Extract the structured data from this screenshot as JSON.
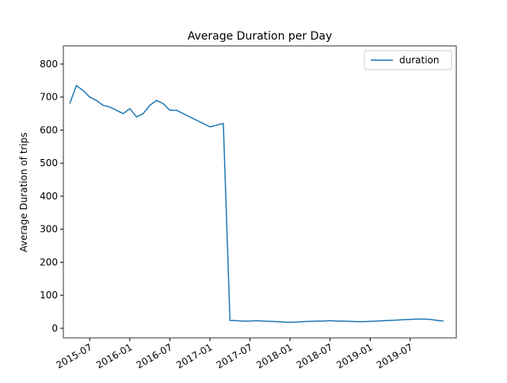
{
  "chart_data": {
    "type": "line",
    "title": "Average Duration per Day",
    "y_label": "Average Duration of trips",
    "x": [
      "2015-04",
      "2015-05",
      "2015-06",
      "2015-07",
      "2015-08",
      "2015-09",
      "2015-10",
      "2015-11",
      "2015-12",
      "2016-01",
      "2016-02",
      "2016-03",
      "2016-04",
      "2016-05",
      "2016-06",
      "2016-07",
      "2016-08",
      "2016-09",
      "2016-10",
      "2016-11",
      "2016-12",
      "2017-01",
      "2017-02",
      "2017-03",
      "2017-04",
      "2017-05",
      "2017-06",
      "2017-07",
      "2017-08",
      "2017-09",
      "2017-10",
      "2017-11",
      "2017-12",
      "2018-01",
      "2018-02",
      "2018-03",
      "2018-04",
      "2018-05",
      "2018-06",
      "2018-07",
      "2018-08",
      "2018-09",
      "2018-10",
      "2018-11",
      "2018-12",
      "2019-01",
      "2019-02",
      "2019-03",
      "2019-04",
      "2019-05",
      "2019-06",
      "2019-07",
      "2019-08",
      "2019-09",
      "2019-10",
      "2019-11",
      "2019-12"
    ],
    "series": [
      {
        "name": "duration",
        "color": "#1f77b4",
        "values": [
          680,
          735,
          720,
          700,
          690,
          675,
          670,
          660,
          650,
          665,
          640,
          650,
          675,
          690,
          680,
          660,
          660,
          650,
          640,
          630,
          620,
          610,
          615,
          620,
          24,
          23,
          22,
          22,
          23,
          22,
          21,
          20,
          19,
          18,
          19,
          20,
          21,
          22,
          22,
          23,
          22,
          22,
          21,
          20,
          20,
          21,
          22,
          23,
          24,
          25,
          26,
          27,
          28,
          28,
          27,
          24,
          22
        ]
      }
    ],
    "xlim": [
      "2015-04",
      "2019-12"
    ],
    "xticks": [
      "2015-07",
      "2016-01",
      "2016-07",
      "2017-01",
      "2017-07",
      "2018-01",
      "2018-07",
      "2019-01",
      "2019-07"
    ],
    "ylim": [
      -29,
      855
    ],
    "yticks": [
      0,
      100,
      200,
      300,
      400,
      500,
      600,
      700,
      800
    ],
    "grid": false,
    "legend": "upper right"
  }
}
